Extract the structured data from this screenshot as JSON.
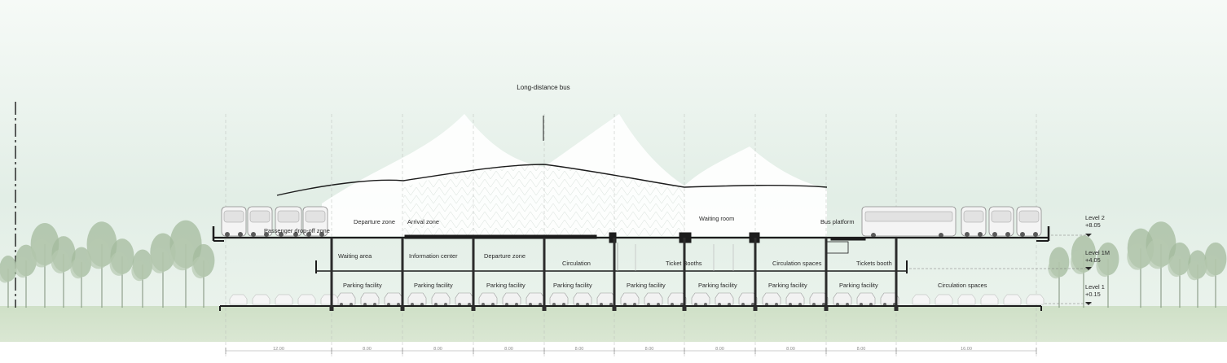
{
  "title_label": "Long-distance bus",
  "levels": [
    {
      "name": "Level 2",
      "elevation": "+8.05"
    },
    {
      "name": "Level 1M",
      "elevation": "+4.05"
    },
    {
      "name": "Level 1",
      "elevation": "+0.15"
    }
  ],
  "level2_labels": [
    "Passenger drop-off zone",
    "Departure zone",
    "Arrival zone",
    "Waiting room",
    "Bus platform"
  ],
  "level1m_labels": [
    "Waiting area",
    "Information center",
    "Departure zone",
    "Circulation",
    "Ticket Booths",
    "Circulation spaces",
    "Tickets booth"
  ],
  "level1_labels": [
    "Parking facility",
    "Parking facility",
    "Parking facility",
    "Parking facility",
    "Parking facility",
    "Parking facility",
    "Parking facility",
    "Parking facility",
    "Circulation spaces"
  ],
  "dimensions": [
    "12.00",
    "8.00",
    "8.00",
    "8.00",
    "8.00",
    "8.00",
    "8.00",
    "8.00",
    "8.00",
    "16.00"
  ],
  "colors": {
    "sky": "#e4efe7",
    "ground": "#c9dcc1",
    "structure": "#1c1c1c",
    "tree": "#9cb597",
    "canopy": "#ffffff"
  }
}
